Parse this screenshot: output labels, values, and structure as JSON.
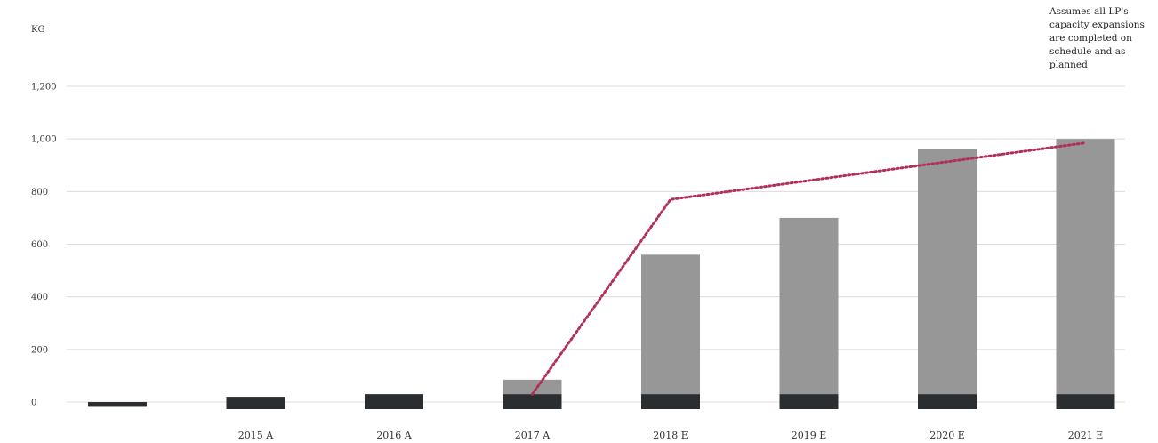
{
  "chart_data": {
    "type": "bar",
    "ylabel": "KG",
    "ylim": [
      0,
      1200
    ],
    "yticks": [
      "0",
      "200",
      "400",
      "600",
      "800",
      "1,000",
      "1,200"
    ],
    "grid": true,
    "categories": [
      "",
      "2015 A",
      "2016 A",
      "2017 A",
      "2018 E",
      "2019 E",
      "2020 E",
      "2021 E"
    ],
    "series": [
      {
        "kind": "bar",
        "color": "#2b2e31",
        "values": [
          -15,
          20,
          30,
          30,
          30,
          30,
          30,
          30
        ]
      },
      {
        "kind": "bar",
        "color": "#979797",
        "values": [
          0,
          0,
          0,
          55,
          530,
          670,
          930,
          970
        ]
      },
      {
        "kind": "line",
        "style": "dotted",
        "color": "#b0305a",
        "values": [
          null,
          null,
          null,
          30,
          770,
          null,
          null,
          985
        ]
      }
    ],
    "annotation": "Assumes all LP's capacity expansions are completed on schedule and as planned"
  }
}
